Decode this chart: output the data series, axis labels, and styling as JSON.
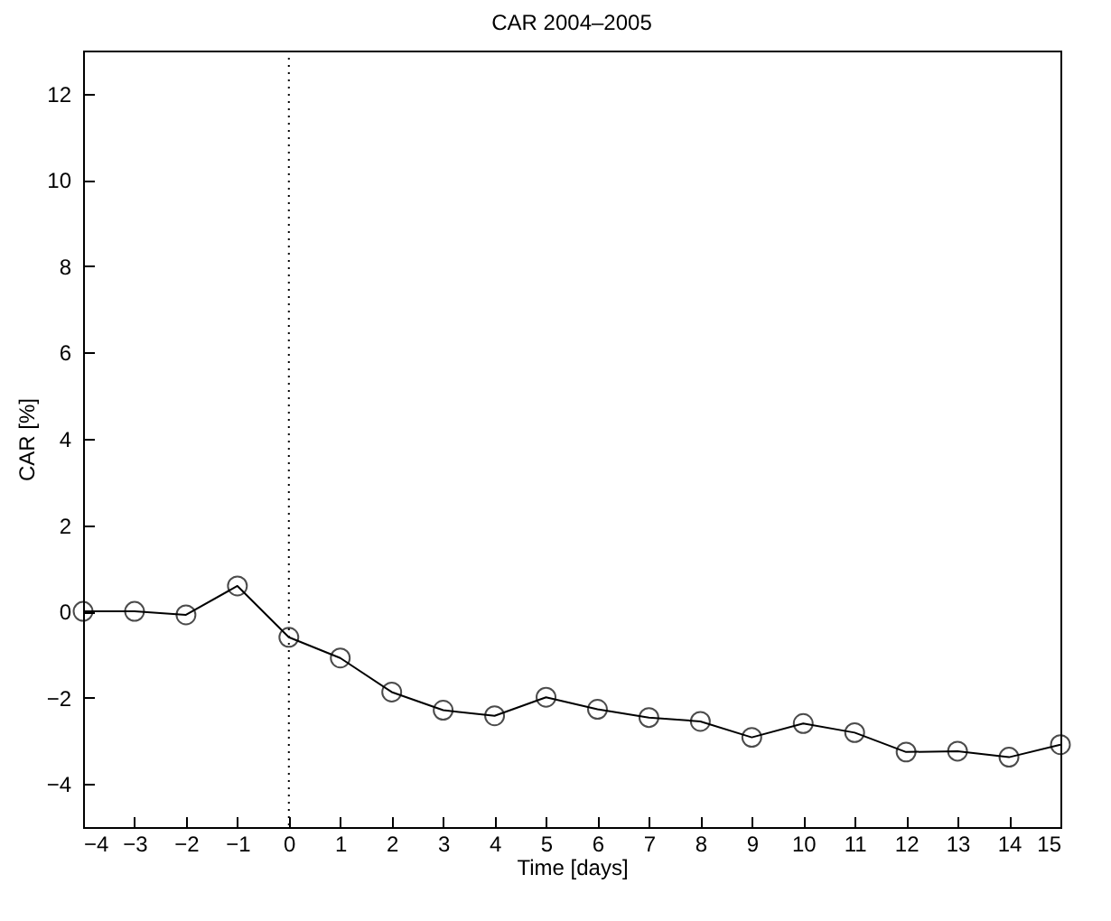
{
  "chart_data": {
    "type": "line",
    "title": "CAR 2004–2005",
    "xlabel": "Time [days]",
    "ylabel": "CAR [%]",
    "x": [
      -4,
      -3,
      -2,
      -1,
      0,
      1,
      2,
      3,
      4,
      5,
      6,
      7,
      8,
      9,
      10,
      11,
      12,
      13,
      14,
      15
    ],
    "series": [
      {
        "color": "#000000",
        "values": [
          0,
          0,
          -0.08,
          0.59,
          -0.6,
          -1.08,
          -1.87,
          -2.29,
          -2.42,
          -1.99,
          -2.27,
          -2.46,
          -2.55,
          -2.92,
          -2.6,
          -2.81,
          -3.26,
          -3.24,
          -3.38,
          -3.09
        ]
      }
    ],
    "xlim": [
      -4,
      15
    ],
    "xticks": [
      -4,
      -3,
      -2,
      -1,
      0,
      1,
      2,
      3,
      4,
      5,
      6,
      7,
      8,
      9,
      10,
      11,
      12,
      13,
      14,
      15
    ],
    "ylim": [
      -5,
      13
    ],
    "yticks": [
      -4,
      -2,
      0,
      2,
      4,
      6,
      8,
      10,
      12
    ],
    "ref_lines": [
      {
        "axis": "x",
        "value": 0,
        "color": "#000000",
        "line_style": "dotted"
      }
    ],
    "marker": "circle",
    "line_style": "solid",
    "grid": false
  }
}
